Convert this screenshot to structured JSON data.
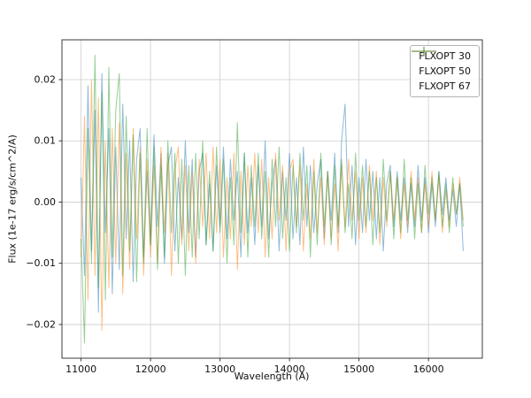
{
  "chart_data": {
    "type": "line",
    "title": "",
    "xlabel": "Wavelength (A)",
    "ylabel": "Flux (1e-17 erg/s/cm^2/A)",
    "xlim": [
      10725,
      16775
    ],
    "ylim": [
      -0.0255,
      0.0265
    ],
    "xticks": [
      11000,
      12000,
      13000,
      14000,
      15000,
      16000
    ],
    "yticks": [
      -0.02,
      -0.01,
      0.0,
      0.01,
      0.02
    ],
    "ytick_labels": [
      "−0.02",
      "−0.01",
      "0.00",
      "0.01",
      "0.02"
    ],
    "grid": true,
    "grid_color": "#cccccc",
    "spine_color": "#262626",
    "legend_position": "upper right",
    "x": {
      "start": 11000,
      "step": 50,
      "count": 111
    },
    "series": [
      {
        "name": "FLXOPT 30",
        "color": "#1f77b4",
        "alpha": 0.5,
        "values": [
          0.004,
          -0.012,
          0.019,
          -0.008,
          0.015,
          -0.018,
          0.021,
          -0.005,
          0.012,
          -0.015,
          0.009,
          -0.011,
          0.016,
          -0.006,
          0.01,
          -0.013,
          0.007,
          0.012,
          -0.009,
          0.005,
          -0.007,
          0.011,
          -0.004,
          0.008,
          -0.01,
          0.006,
          0.009,
          -0.008,
          0.004,
          -0.006,
          0.01,
          -0.005,
          0.007,
          -0.009,
          0.005,
          0.008,
          -0.007,
          0.003,
          -0.008,
          0.006,
          -0.004,
          0.009,
          -0.006,
          0.007,
          -0.003,
          0.005,
          -0.009,
          0.008,
          -0.005,
          0.004,
          -0.007,
          0.006,
          -0.004,
          0.01,
          -0.006,
          0.003,
          0.007,
          -0.008,
          0.005,
          -0.003,
          0.008,
          -0.006,
          0.004,
          -0.007,
          0.009,
          -0.004,
          0.006,
          -0.005,
          0.003,
          0.007,
          -0.006,
          0.005,
          -0.003,
          0.008,
          -0.005,
          0.01,
          0.016,
          -0.004,
          0.006,
          -0.007,
          0.004,
          -0.005,
          0.007,
          -0.003,
          0.005,
          -0.006,
          0.004,
          -0.008,
          0.003,
          0.006,
          -0.004,
          0.005,
          -0.003,
          0.004,
          -0.005,
          0.003,
          -0.004,
          0.006,
          -0.003,
          0.004,
          -0.005,
          0.003,
          -0.004,
          0.005,
          -0.002,
          0.004,
          -0.003,
          0.002,
          -0.004,
          0.003,
          -0.008
        ]
      },
      {
        "name": "FLXOPT 50",
        "color": "#ff7f0e",
        "alpha": 0.5,
        "values": [
          -0.009,
          0.014,
          -0.016,
          0.02,
          -0.012,
          0.017,
          -0.021,
          0.01,
          -0.014,
          0.012,
          -0.01,
          0.013,
          -0.015,
          0.008,
          -0.011,
          0.012,
          -0.006,
          0.009,
          -0.012,
          0.007,
          -0.009,
          0.006,
          -0.01,
          0.009,
          -0.005,
          0.008,
          -0.012,
          0.005,
          0.009,
          -0.007,
          0.006,
          -0.008,
          0.005,
          -0.01,
          0.007,
          -0.004,
          0.008,
          -0.006,
          0.009,
          -0.005,
          0.007,
          -0.009,
          0.004,
          -0.006,
          0.008,
          -0.011,
          0.005,
          -0.007,
          0.006,
          -0.004,
          0.008,
          -0.005,
          0.007,
          -0.009,
          0.004,
          -0.006,
          0.008,
          -0.003,
          0.006,
          -0.008,
          0.005,
          0.007,
          -0.004,
          0.006,
          -0.008,
          0.003,
          -0.006,
          0.007,
          -0.005,
          0.004,
          -0.007,
          0.005,
          -0.006,
          0.003,
          -0.008,
          0.006,
          -0.004,
          0.007,
          -0.003,
          0.005,
          -0.006,
          0.004,
          -0.005,
          0.006,
          -0.003,
          0.005,
          -0.007,
          0.004,
          -0.004,
          0.005,
          -0.003,
          0.004,
          -0.006,
          0.003,
          -0.004,
          0.005,
          -0.003,
          0.004,
          -0.005,
          0.003,
          -0.004,
          0.005,
          -0.003,
          0.004,
          -0.005,
          0.002,
          -0.004,
          0.003,
          -0.002,
          0.004,
          -0.003
        ]
      },
      {
        "name": "FLXOPT 67",
        "color": "#2ca02c",
        "alpha": 0.5,
        "values": [
          -0.006,
          -0.023,
          0.012,
          -0.01,
          0.024,
          -0.014,
          0.018,
          -0.016,
          0.022,
          -0.009,
          0.015,
          0.021,
          -0.012,
          0.014,
          -0.008,
          0.011,
          -0.013,
          0.008,
          -0.01,
          0.012,
          -0.007,
          0.009,
          -0.011,
          0.006,
          -0.009,
          0.01,
          -0.005,
          0.008,
          -0.01,
          0.007,
          -0.012,
          0.006,
          -0.009,
          0.008,
          -0.006,
          0.01,
          -0.007,
          0.005,
          -0.008,
          0.009,
          -0.005,
          0.007,
          -0.01,
          0.004,
          -0.007,
          0.013,
          -0.005,
          0.008,
          -0.009,
          0.006,
          -0.004,
          0.008,
          -0.006,
          0.005,
          -0.009,
          0.007,
          -0.004,
          0.009,
          -0.006,
          0.004,
          -0.008,
          0.006,
          -0.005,
          0.008,
          -0.003,
          0.006,
          -0.009,
          0.005,
          -0.007,
          0.008,
          -0.004,
          0.005,
          -0.007,
          0.006,
          -0.004,
          0.007,
          -0.005,
          0.003,
          -0.006,
          0.008,
          -0.003,
          0.006,
          -0.004,
          0.005,
          -0.007,
          0.004,
          -0.005,
          0.007,
          -0.003,
          0.005,
          -0.006,
          0.004,
          -0.005,
          0.007,
          -0.003,
          0.004,
          -0.006,
          0.003,
          -0.005,
          0.006,
          -0.002,
          0.004,
          -0.003,
          0.005,
          -0.004,
          0.003,
          -0.005,
          0.004,
          -0.002,
          0.003,
          -0.004
        ]
      }
    ]
  }
}
